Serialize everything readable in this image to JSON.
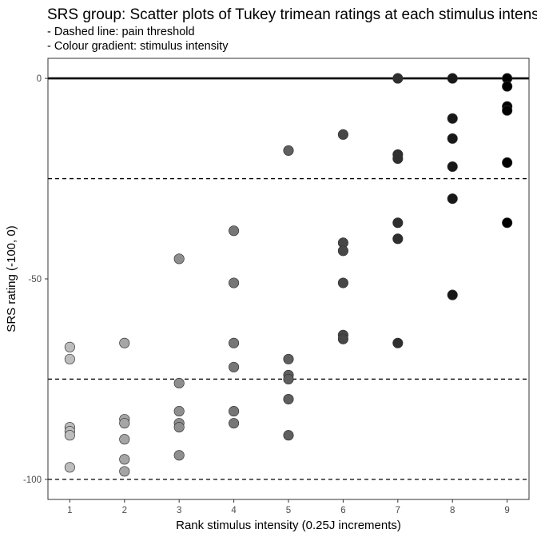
{
  "chart_data": {
    "type": "scatter",
    "title": "SRS group: Scatter plots of Tukey trimean ratings at each stimulus intensity",
    "subtitle_lines": [
      "- Dashed line: pain threshold",
      "- Colour gradient: stimulus intensity"
    ],
    "xlabel": "Rank stimulus intensity (0.25J increments)",
    "ylabel": "SRS rating (-100, 0)",
    "xlim": [
      0.6,
      9.4
    ],
    "ylim": [
      -105,
      5
    ],
    "x_ticks": [
      1,
      2,
      3,
      4,
      5,
      6,
      7,
      8,
      9
    ],
    "x_tick_labels": [
      "1",
      "2",
      "3",
      "4",
      "5",
      "6",
      "7",
      "8",
      "9"
    ],
    "y_ticks": [
      0,
      -50,
      -100
    ],
    "y_tick_labels": [
      "0",
      "-50",
      "-100"
    ],
    "solid_hlines": [
      0
    ],
    "dashed_hlines": [
      -25,
      -75,
      -100
    ],
    "grid": false,
    "color_gradient": {
      "low": "#bdbdbd",
      "high": "#000000"
    },
    "points": [
      {
        "x": 1,
        "y": -67
      },
      {
        "x": 1,
        "y": -70
      },
      {
        "x": 1,
        "y": -87
      },
      {
        "x": 1,
        "y": -88
      },
      {
        "x": 1,
        "y": -89
      },
      {
        "x": 1,
        "y": -97
      },
      {
        "x": 2,
        "y": -66
      },
      {
        "x": 2,
        "y": -85
      },
      {
        "x": 2,
        "y": -86
      },
      {
        "x": 2,
        "y": -90
      },
      {
        "x": 2,
        "y": -95
      },
      {
        "x": 2,
        "y": -98
      },
      {
        "x": 3,
        "y": -45
      },
      {
        "x": 3,
        "y": -76
      },
      {
        "x": 3,
        "y": -83
      },
      {
        "x": 3,
        "y": -86
      },
      {
        "x": 3,
        "y": -87
      },
      {
        "x": 3,
        "y": -94
      },
      {
        "x": 4,
        "y": -38
      },
      {
        "x": 4,
        "y": -51
      },
      {
        "x": 4,
        "y": -66
      },
      {
        "x": 4,
        "y": -72
      },
      {
        "x": 4,
        "y": -83
      },
      {
        "x": 4,
        "y": -86
      },
      {
        "x": 5,
        "y": -18
      },
      {
        "x": 5,
        "y": -70
      },
      {
        "x": 5,
        "y": -74
      },
      {
        "x": 5,
        "y": -75
      },
      {
        "x": 5,
        "y": -80
      },
      {
        "x": 5,
        "y": -89
      },
      {
        "x": 6,
        "y": -14
      },
      {
        "x": 6,
        "y": -41
      },
      {
        "x": 6,
        "y": -43
      },
      {
        "x": 6,
        "y": -51
      },
      {
        "x": 6,
        "y": -64
      },
      {
        "x": 6,
        "y": -65
      },
      {
        "x": 7,
        "y": 0
      },
      {
        "x": 7,
        "y": -19
      },
      {
        "x": 7,
        "y": -20
      },
      {
        "x": 7,
        "y": -36
      },
      {
        "x": 7,
        "y": -40
      },
      {
        "x": 7,
        "y": -66
      },
      {
        "x": 8,
        "y": 0
      },
      {
        "x": 8,
        "y": -10
      },
      {
        "x": 8,
        "y": -15
      },
      {
        "x": 8,
        "y": -22
      },
      {
        "x": 8,
        "y": -30
      },
      {
        "x": 8,
        "y": -54
      },
      {
        "x": 9,
        "y": 0
      },
      {
        "x": 9,
        "y": -2
      },
      {
        "x": 9,
        "y": -7
      },
      {
        "x": 9,
        "y": -8
      },
      {
        "x": 9,
        "y": -21
      },
      {
        "x": 9,
        "y": -36
      }
    ]
  }
}
